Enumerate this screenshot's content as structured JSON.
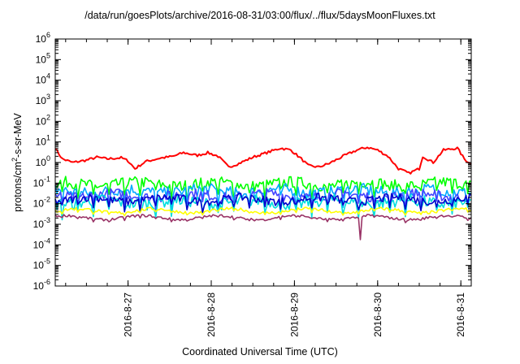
{
  "chart_data": {
    "type": "line",
    "title": "/data/run/goesPlots/archive/2016-08-31/03:00/flux/../flux/5daysMoonFluxes.txt",
    "xlabel": "Coordinated Universal Time (UTC)",
    "ylabel_parts": [
      "protons/cm",
      "2",
      "-s-sr-MeV"
    ],
    "y_scale": "log",
    "ylim": [
      1e-06,
      1000000.0
    ],
    "y_ticks": [
      {
        "base": "10",
        "exp": "6"
      },
      {
        "base": "10",
        "exp": "5"
      },
      {
        "base": "10",
        "exp": "4"
      },
      {
        "base": "10",
        "exp": "3"
      },
      {
        "base": "10",
        "exp": "2"
      },
      {
        "base": "10",
        "exp": "1"
      },
      {
        "base": "10",
        "exp": "0"
      },
      {
        "base": "10",
        "exp": "-1"
      },
      {
        "base": "10",
        "exp": "-2"
      },
      {
        "base": "10",
        "exp": "-3"
      },
      {
        "base": "10",
        "exp": "-4"
      },
      {
        "base": "10",
        "exp": "-5"
      },
      {
        "base": "10",
        "exp": "-6"
      }
    ],
    "x_start": "2016-08-26T03:00",
    "x_end": "2016-08-31T03:00",
    "x_ticks": [
      "2016-8-27",
      "2016-8-28",
      "2016-8-29",
      "2016-8-30",
      "2016-8-31"
    ],
    "x_tick_dates": [
      "2016-08-27T00:00",
      "2016-08-28T00:00",
      "2016-08-29T00:00",
      "2016-08-30T00:00",
      "2016-08-31T00:00"
    ],
    "grid": false,
    "legend": "none",
    "series": [
      {
        "color": "#ff0000",
        "points": [
          [
            "2016-08-26T03:00",
            5.0
          ],
          [
            "2016-08-26T05:00",
            1.5
          ],
          [
            "2016-08-26T08:00",
            1.0
          ],
          [
            "2016-08-26T12:00",
            1.3
          ],
          [
            "2016-08-26T15:00",
            1.8
          ],
          [
            "2016-08-26T18:00",
            1.5
          ],
          [
            "2016-08-26T22:00",
            1.7
          ],
          [
            "2016-08-27T00:00",
            1.2
          ],
          [
            "2016-08-27T02:00",
            0.5
          ],
          [
            "2016-08-27T05:00",
            1.1
          ],
          [
            "2016-08-27T09:00",
            1.6
          ],
          [
            "2016-08-27T13:00",
            2.0
          ],
          [
            "2016-08-27T16:00",
            3.0
          ],
          [
            "2016-08-27T20:00",
            2.2
          ],
          [
            "2016-08-27T23:00",
            3.0
          ],
          [
            "2016-08-28T02:00",
            2.0
          ],
          [
            "2016-08-28T05:00",
            0.6
          ],
          [
            "2016-08-28T08:00",
            0.9
          ],
          [
            "2016-08-28T12:00",
            1.8
          ],
          [
            "2016-08-28T16:00",
            3.0
          ],
          [
            "2016-08-28T20:00",
            5.0
          ],
          [
            "2016-08-28T23:00",
            4.0
          ],
          [
            "2016-08-29T02:00",
            1.5
          ],
          [
            "2016-08-29T04:00",
            0.7
          ],
          [
            "2016-08-29T07:00",
            0.6
          ],
          [
            "2016-08-29T10:00",
            0.9
          ],
          [
            "2016-08-29T14:00",
            2.0
          ],
          [
            "2016-08-29T18:00",
            4.0
          ],
          [
            "2016-08-29T21:00",
            5.5
          ],
          [
            "2016-08-30T00:00",
            4.0
          ],
          [
            "2016-08-30T03:00",
            2.0
          ],
          [
            "2016-08-30T06:00",
            0.5
          ],
          [
            "2016-08-30T09:00",
            0.3
          ],
          [
            "2016-08-30T12:00",
            0.5
          ],
          [
            "2016-08-30T13:00",
            2.0
          ],
          [
            "2016-08-30T16:00",
            1.0
          ],
          [
            "2016-08-30T19:00",
            4.0
          ],
          [
            "2016-08-30T23:00",
            5.0
          ],
          [
            "2016-08-31T01:00",
            1.5
          ],
          [
            "2016-08-31T03:00",
            0.8
          ]
        ]
      },
      {
        "color": "#00ff00",
        "level": 0.09,
        "spread": 0.55
      },
      {
        "color": "#00aaff",
        "level": 0.04,
        "spread": 0.6
      },
      {
        "color": "#4444ff",
        "level": 0.025,
        "spread": 0.5
      },
      {
        "color": "#00dddd",
        "level": 0.012,
        "spread": 0.6
      },
      {
        "color": "#0000cc",
        "level": 0.016,
        "spread": 0.4
      },
      {
        "color": "#ffff00",
        "level": 0.0045,
        "spread": 0.15
      },
      {
        "color": "#993366",
        "level": 0.0021,
        "spread": 0.12,
        "dip_at": "2016-08-29T19:00",
        "dip_value": 0.00018
      }
    ]
  }
}
